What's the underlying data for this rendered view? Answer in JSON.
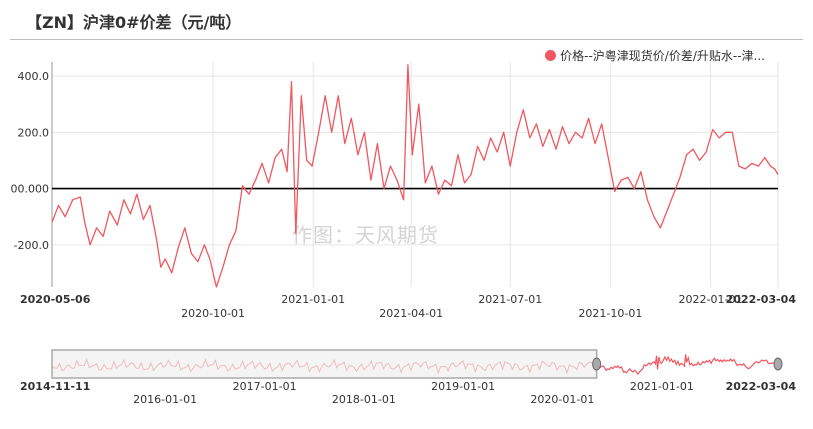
{
  "page": {
    "title": "【ZN】沪津0#价差（元/吨）",
    "watermark": "作图：天风期货"
  },
  "colors": {
    "series": "#f0575f",
    "zero_line": "#000000",
    "grid": "#e6e6e6",
    "nav_window": "#aaaaaa"
  },
  "chart_data": {
    "type": "line",
    "title": "【ZN】沪津0#价差（元/吨）",
    "xlabel": "",
    "ylabel": "",
    "ylim": [
      -350,
      450
    ],
    "yticks": [
      {
        "value": 400,
        "label": "400.0"
      },
      {
        "value": 200,
        "label": "200.0"
      },
      {
        "value": 0,
        "label": "00.000"
      },
      {
        "value": -200,
        "label": "-200.0"
      }
    ],
    "x_range": [
      "2020-05-06",
      "2022-03-04"
    ],
    "xticks_top": [
      {
        "date": "2020-05-06",
        "label": "2020-05-06",
        "bold": true
      },
      {
        "date": "2021-01-01",
        "label": "2021-01-01",
        "bold": false
      },
      {
        "date": "2021-07-01",
        "label": "2021-07-01",
        "bold": false
      },
      {
        "date": "2022-01-01",
        "label": "2022-01-01",
        "bold": false
      },
      {
        "date": "2022-03-04",
        "label": "2022-03-04",
        "bold": true
      }
    ],
    "xticks_bottom": [
      {
        "date": "2020-10-01",
        "label": "2020-10-01"
      },
      {
        "date": "2021-04-01",
        "label": "2021-04-01"
      },
      {
        "date": "2021-10-01",
        "label": "2021-10-01"
      }
    ],
    "grid": true,
    "legend_position": "top-right",
    "series": [
      {
        "name": "价格--沪粤津现货价/价差/升贴水--津...",
        "points": [
          [
            "2020-05-06",
            -120
          ],
          [
            "2020-05-12",
            -60
          ],
          [
            "2020-05-18",
            -100
          ],
          [
            "2020-05-25",
            -40
          ],
          [
            "2020-06-01",
            -30
          ],
          [
            "2020-06-05",
            -120
          ],
          [
            "2020-06-10",
            -200
          ],
          [
            "2020-06-16",
            -140
          ],
          [
            "2020-06-22",
            -170
          ],
          [
            "2020-06-28",
            -80
          ],
          [
            "2020-07-05",
            -130
          ],
          [
            "2020-07-11",
            -40
          ],
          [
            "2020-07-17",
            -90
          ],
          [
            "2020-07-23",
            -20
          ],
          [
            "2020-07-29",
            -110
          ],
          [
            "2020-08-04",
            -60
          ],
          [
            "2020-08-10",
            -180
          ],
          [
            "2020-08-14",
            -280
          ],
          [
            "2020-08-18",
            -250
          ],
          [
            "2020-08-24",
            -300
          ],
          [
            "2020-08-30",
            -210
          ],
          [
            "2020-09-05",
            -140
          ],
          [
            "2020-09-11",
            -230
          ],
          [
            "2020-09-17",
            -260
          ],
          [
            "2020-09-23",
            -200
          ],
          [
            "2020-09-28",
            -250
          ],
          [
            "2020-10-04",
            -350
          ],
          [
            "2020-10-10",
            -280
          ],
          [
            "2020-10-16",
            -200
          ],
          [
            "2020-10-22",
            -150
          ],
          [
            "2020-10-28",
            10
          ],
          [
            "2020-11-03",
            -20
          ],
          [
            "2020-11-09",
            30
          ],
          [
            "2020-11-15",
            90
          ],
          [
            "2020-11-21",
            20
          ],
          [
            "2020-11-27",
            110
          ],
          [
            "2020-12-03",
            140
          ],
          [
            "2020-12-08",
            60
          ],
          [
            "2020-12-12",
            380
          ],
          [
            "2020-12-16",
            -160
          ],
          [
            "2020-12-21",
            330
          ],
          [
            "2020-12-26",
            100
          ],
          [
            "2020-12-31",
            80
          ],
          [
            "2021-01-06",
            200
          ],
          [
            "2021-01-12",
            330
          ],
          [
            "2021-01-18",
            200
          ],
          [
            "2021-01-24",
            330
          ],
          [
            "2021-01-30",
            160
          ],
          [
            "2021-02-05",
            250
          ],
          [
            "2021-02-11",
            120
          ],
          [
            "2021-02-17",
            200
          ],
          [
            "2021-02-23",
            30
          ],
          [
            "2021-03-01",
            160
          ],
          [
            "2021-03-07",
            0
          ],
          [
            "2021-03-13",
            80
          ],
          [
            "2021-03-19",
            30
          ],
          [
            "2021-03-25",
            -40
          ],
          [
            "2021-03-29",
            440
          ],
          [
            "2021-04-02",
            120
          ],
          [
            "2021-04-08",
            300
          ],
          [
            "2021-04-14",
            20
          ],
          [
            "2021-04-20",
            80
          ],
          [
            "2021-04-26",
            -20
          ],
          [
            "2021-05-02",
            30
          ],
          [
            "2021-05-08",
            10
          ],
          [
            "2021-05-14",
            120
          ],
          [
            "2021-05-20",
            20
          ],
          [
            "2021-05-26",
            50
          ],
          [
            "2021-06-01",
            150
          ],
          [
            "2021-06-07",
            100
          ],
          [
            "2021-06-13",
            180
          ],
          [
            "2021-06-19",
            130
          ],
          [
            "2021-06-25",
            200
          ],
          [
            "2021-07-01",
            80
          ],
          [
            "2021-07-07",
            200
          ],
          [
            "2021-07-13",
            280
          ],
          [
            "2021-07-19",
            180
          ],
          [
            "2021-07-25",
            230
          ],
          [
            "2021-07-31",
            150
          ],
          [
            "2021-08-06",
            210
          ],
          [
            "2021-08-12",
            140
          ],
          [
            "2021-08-18",
            220
          ],
          [
            "2021-08-24",
            160
          ],
          [
            "2021-08-30",
            200
          ],
          [
            "2021-09-05",
            180
          ],
          [
            "2021-09-11",
            250
          ],
          [
            "2021-09-17",
            160
          ],
          [
            "2021-09-23",
            230
          ],
          [
            "2021-09-29",
            110
          ],
          [
            "2021-10-05",
            -10
          ],
          [
            "2021-10-11",
            30
          ],
          [
            "2021-10-17",
            40
          ],
          [
            "2021-10-23",
            0
          ],
          [
            "2021-10-29",
            60
          ],
          [
            "2021-11-04",
            -40
          ],
          [
            "2021-11-10",
            -100
          ],
          [
            "2021-11-16",
            -140
          ],
          [
            "2021-11-22",
            -80
          ],
          [
            "2021-11-28",
            -20
          ],
          [
            "2021-12-04",
            40
          ],
          [
            "2021-12-10",
            120
          ],
          [
            "2021-12-16",
            140
          ],
          [
            "2021-12-22",
            100
          ],
          [
            "2021-12-28",
            130
          ],
          [
            "2022-01-03",
            210
          ],
          [
            "2022-01-09",
            180
          ],
          [
            "2022-01-15",
            200
          ],
          [
            "2022-01-21",
            200
          ],
          [
            "2022-01-27",
            80
          ],
          [
            "2022-02-02",
            70
          ],
          [
            "2022-02-08",
            90
          ],
          [
            "2022-02-14",
            80
          ],
          [
            "2022-02-20",
            110
          ],
          [
            "2022-02-25",
            80
          ],
          [
            "2022-03-01",
            70
          ],
          [
            "2022-03-04",
            50
          ]
        ]
      }
    ]
  },
  "navigator": {
    "full_range": [
      "2014-11-11",
      "2022-03-04"
    ],
    "window": [
      "2014-11-11",
      "2020-05-06"
    ],
    "ticks_top": [
      {
        "date": "2014-11-11",
        "label": "2014-11-11",
        "bold": true
      },
      {
        "date": "2017-01-01",
        "label": "2017-01-01",
        "bold": false
      },
      {
        "date": "2019-01-01",
        "label": "2019-01-01",
        "bold": false
      },
      {
        "date": "2021-01-01",
        "label": "2021-01-01",
        "bold": false
      },
      {
        "date": "2022-03-04",
        "label": "2022-03-04",
        "bold": true
      }
    ],
    "ticks_bottom": [
      {
        "date": "2016-01-01",
        "label": "2016-01-01"
      },
      {
        "date": "2018-01-01",
        "label": "2018-01-01"
      },
      {
        "date": "2020-01-01",
        "label": "2020-01-01"
      }
    ]
  }
}
